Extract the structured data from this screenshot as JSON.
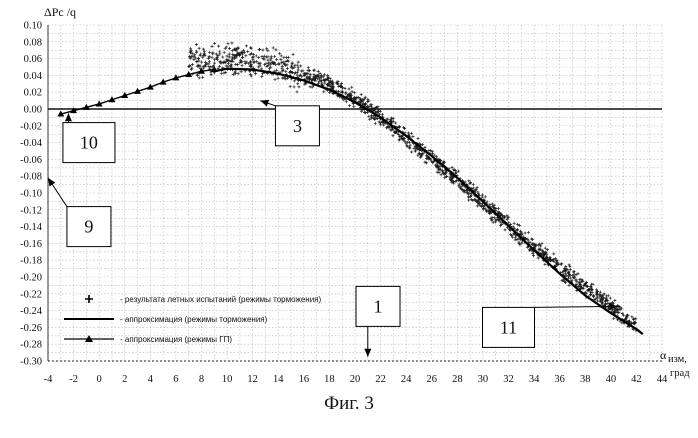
{
  "chart_data": {
    "type": "scatter",
    "ylabel": "ΔPc /q",
    "xlabel_main": "α",
    "xlabel_sub": "изм,",
    "xlabel_unit": "град",
    "xlim": [
      -4,
      44
    ],
    "ylim": [
      -0.3,
      0.1
    ],
    "x_ticks": [
      "-4",
      "-2",
      "0",
      "2",
      "4",
      "6",
      "8",
      "10",
      "12",
      "14",
      "16",
      "18",
      "20",
      "22",
      "24",
      "26",
      "28",
      "30",
      "32",
      "34",
      "36",
      "38",
      "40",
      "42",
      "44"
    ],
    "y_ticks": [
      "0.10",
      "0.08",
      "0.06",
      "0.04",
      "0.02",
      "0.00",
      "-0.02",
      "-0.04",
      "-0.06",
      "-0.08",
      "-0.10",
      "-0.12",
      "-0.14",
      "-0.16",
      "-0.18",
      "-0.20",
      "-0.22",
      "-0.24",
      "-0.26",
      "-0.28",
      "-0.30"
    ],
    "grid": true,
    "legend_position": "bottom-left",
    "series": [
      {
        "name": "- результата летных испытаний (режимы торможения)",
        "marker": "plus",
        "approx_curve": [
          [
            7,
            0.055
          ],
          [
            9,
            0.058
          ],
          [
            10,
            0.06
          ],
          [
            11,
            0.06
          ],
          [
            12,
            0.058
          ],
          [
            14,
            0.05
          ],
          [
            16,
            0.04
          ],
          [
            18,
            0.03
          ],
          [
            20,
            0.012
          ],
          [
            22,
            -0.01
          ],
          [
            24,
            -0.035
          ],
          [
            26,
            -0.06
          ],
          [
            28,
            -0.085
          ],
          [
            30,
            -0.112
          ],
          [
            32,
            -0.14
          ],
          [
            34,
            -0.165
          ],
          [
            36,
            -0.19
          ],
          [
            38,
            -0.212
          ],
          [
            40,
            -0.235
          ],
          [
            42,
            -0.26
          ]
        ],
        "spread": 0.012
      },
      {
        "name": "- аппроксимация (режимы торможения)",
        "style": "line",
        "points": [
          [
            9,
            0.045
          ],
          [
            10,
            0.048
          ],
          [
            12,
            0.047
          ],
          [
            14,
            0.042
          ],
          [
            16,
            0.034
          ],
          [
            18,
            0.023
          ],
          [
            20,
            0.008
          ],
          [
            22,
            -0.01
          ],
          [
            24,
            -0.032
          ],
          [
            26,
            -0.056
          ],
          [
            28,
            -0.082
          ],
          [
            30,
            -0.11
          ],
          [
            32,
            -0.139
          ],
          [
            34,
            -0.168
          ],
          [
            36,
            -0.196
          ],
          [
            38,
            -0.222
          ],
          [
            40,
            -0.243
          ],
          [
            42,
            -0.262
          ],
          [
            42.5,
            -0.268
          ]
        ]
      },
      {
        "name": "- аппроксимация (режимы ГП)",
        "style": "line-triangle",
        "points": [
          [
            -3,
            -0.006
          ],
          [
            -2,
            -0.002
          ],
          [
            -1,
            0.002
          ],
          [
            0,
            0.006
          ],
          [
            1,
            0.011
          ],
          [
            2,
            0.016
          ],
          [
            3,
            0.021
          ],
          [
            4,
            0.026
          ],
          [
            5,
            0.032
          ],
          [
            6,
            0.037
          ],
          [
            7,
            0.041
          ],
          [
            8,
            0.045
          ],
          [
            9,
            0.047
          ]
        ]
      }
    ],
    "annotations": [
      {
        "label": "1",
        "box": [
          21.8,
          -0.235
        ],
        "arrow_to": [
          21,
          -0.295
        ]
      },
      {
        "label": "3",
        "box": [
          15.5,
          -0.02
        ],
        "arrow_to": [
          12.6,
          0.01
        ]
      },
      {
        "label": "9",
        "box": [
          -0.8,
          -0.14
        ],
        "arrow_to": [
          -4,
          -0.082
        ]
      },
      {
        "label": "10",
        "box": [
          -0.8,
          -0.04
        ],
        "arrow_to": [
          -2.4,
          -0.005
        ]
      },
      {
        "label": "11",
        "box": [
          32,
          -0.26
        ],
        "arrow_to": [
          40.5,
          -0.235
        ]
      }
    ]
  },
  "caption": "Фиг. 3"
}
